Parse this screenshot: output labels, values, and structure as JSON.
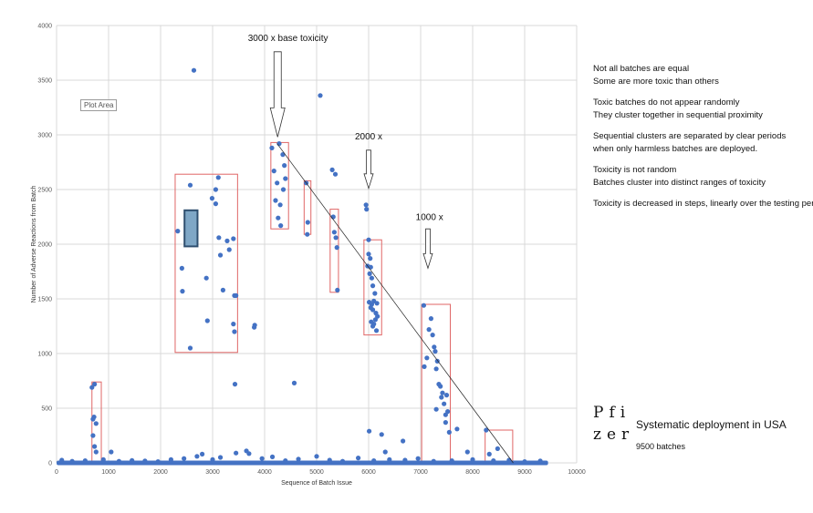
{
  "chart_data": {
    "type": "scatter",
    "xlabel": "Sequence of Batch Issue",
    "ylabel": "Number of Adverse Reactions from Batch",
    "xlim": [
      0,
      10000
    ],
    "ylim": [
      0,
      4000
    ],
    "x_ticks": [
      "0",
      "1000",
      "2000",
      "3000",
      "4000",
      "5000",
      "6000",
      "7000",
      "8000",
      "9000",
      "10000"
    ],
    "y_ticks": [
      "0",
      "500",
      "1000",
      "1500",
      "2000",
      "2500",
      "3000",
      "3500",
      "4000"
    ],
    "grid": true,
    "point_color": "#4472c4",
    "box_color": "#e06666",
    "plot_area_label": "Plot Area",
    "points": [
      [
        680,
        690
      ],
      [
        730,
        720
      ],
      [
        720,
        420
      ],
      [
        700,
        400
      ],
      [
        760,
        360
      ],
      [
        700,
        250
      ],
      [
        730,
        150
      ],
      [
        760,
        100
      ],
      [
        1050,
        100
      ],
      [
        2330,
        2120
      ],
      [
        2410,
        1780
      ],
      [
        2420,
        1570
      ],
      [
        2570,
        2540
      ],
      [
        2640,
        3590
      ],
      [
        2880,
        1690
      ],
      [
        2900,
        1300
      ],
      [
        2570,
        1050
      ],
      [
        2990,
        2420
      ],
      [
        3060,
        2500
      ],
      [
        3060,
        2370
      ],
      [
        3110,
        2610
      ],
      [
        3120,
        2060
      ],
      [
        3150,
        1900
      ],
      [
        3200,
        1580
      ],
      [
        3280,
        2030
      ],
      [
        3320,
        1950
      ],
      [
        3400,
        2050
      ],
      [
        3400,
        1270
      ],
      [
        3420,
        1530
      ],
      [
        3450,
        1530
      ],
      [
        3420,
        1200
      ],
      [
        3430,
        720
      ],
      [
        3800,
        1240
      ],
      [
        3810,
        1260
      ],
      [
        4140,
        2880
      ],
      [
        4180,
        2670
      ],
      [
        4210,
        2400
      ],
      [
        4240,
        2560
      ],
      [
        4260,
        2240
      ],
      [
        4280,
        2920
      ],
      [
        4300,
        2360
      ],
      [
        4310,
        2170
      ],
      [
        4350,
        2820
      ],
      [
        4360,
        2500
      ],
      [
        4380,
        2720
      ],
      [
        4400,
        2600
      ],
      [
        4570,
        730
      ],
      [
        5070,
        3360
      ],
      [
        4800,
        2560
      ],
      [
        4830,
        2200
      ],
      [
        4820,
        2090
      ],
      [
        5300,
        2680
      ],
      [
        5320,
        2250
      ],
      [
        5340,
        2110
      ],
      [
        5370,
        2060
      ],
      [
        5390,
        1970
      ],
      [
        5400,
        1580
      ],
      [
        5360,
        2640
      ],
      [
        5950,
        2360
      ],
      [
        5960,
        2320
      ],
      [
        5980,
        1800
      ],
      [
        6000,
        1910
      ],
      [
        6020,
        1730
      ],
      [
        6040,
        1790
      ],
      [
        6060,
        1690
      ],
      [
        6080,
        1620
      ],
      [
        6010,
        1470
      ],
      [
        6040,
        1420
      ],
      [
        6060,
        1450
      ],
      [
        6080,
        1400
      ],
      [
        6100,
        1480
      ],
      [
        6120,
        1550
      ],
      [
        6140,
        1370
      ],
      [
        6160,
        1460
      ],
      [
        6170,
        1340
      ],
      [
        6050,
        1290
      ],
      [
        6080,
        1250
      ],
      [
        6100,
        1270
      ],
      [
        6130,
        1310
      ],
      [
        6150,
        1210
      ],
      [
        6000,
        2040
      ],
      [
        6030,
        1870
      ],
      [
        6010,
        290
      ],
      [
        6250,
        260
      ],
      [
        6320,
        100
      ],
      [
        6660,
        200
      ],
      [
        7060,
        1440
      ],
      [
        7070,
        880
      ],
      [
        7120,
        960
      ],
      [
        7160,
        1220
      ],
      [
        7200,
        1320
      ],
      [
        7230,
        1170
      ],
      [
        7260,
        1060
      ],
      [
        7280,
        1020
      ],
      [
        7300,
        860
      ],
      [
        7320,
        930
      ],
      [
        7350,
        720
      ],
      [
        7380,
        700
      ],
      [
        7400,
        600
      ],
      [
        7420,
        640
      ],
      [
        7450,
        540
      ],
      [
        7480,
        370
      ],
      [
        7500,
        620
      ],
      [
        7520,
        470
      ],
      [
        7300,
        490
      ],
      [
        7550,
        280
      ],
      [
        7480,
        440
      ],
      [
        7700,
        310
      ],
      [
        7900,
        100
      ],
      [
        8260,
        300
      ],
      [
        8480,
        130
      ],
      [
        8320,
        80
      ]
    ],
    "baseline_points": [
      [
        100,
        25
      ],
      [
        300,
        15
      ],
      [
        550,
        20
      ],
      [
        900,
        30
      ],
      [
        1200,
        15
      ],
      [
        1450,
        22
      ],
      [
        1700,
        18
      ],
      [
        1950,
        12
      ],
      [
        2200,
        30
      ],
      [
        2450,
        40
      ],
      [
        2700,
        60
      ],
      [
        2800,
        80
      ],
      [
        3000,
        30
      ],
      [
        3150,
        50
      ],
      [
        3450,
        90
      ],
      [
        3650,
        110
      ],
      [
        3700,
        85
      ],
      [
        3950,
        40
      ],
      [
        4150,
        55
      ],
      [
        4400,
        20
      ],
      [
        4650,
        35
      ],
      [
        5000,
        60
      ],
      [
        5250,
        25
      ],
      [
        5500,
        15
      ],
      [
        5800,
        45
      ],
      [
        6100,
        20
      ],
      [
        6400,
        30
      ],
      [
        6700,
        25
      ],
      [
        6950,
        40
      ],
      [
        7250,
        15
      ],
      [
        7600,
        20
      ],
      [
        8000,
        30
      ],
      [
        8400,
        20
      ],
      [
        8700,
        25
      ],
      [
        9000,
        12
      ],
      [
        9300,
        18
      ]
    ],
    "baseline_range": [
      0,
      9450
    ],
    "trend_line": [
      [
        4240,
        2920
      ],
      [
        8780,
        0
      ]
    ],
    "boxes": [
      {
        "x0": 680,
        "x1": 860,
        "y0": 0,
        "y1": 740
      },
      {
        "x0": 2280,
        "x1": 3480,
        "y0": 1010,
        "y1": 2640
      },
      {
        "x0": 4120,
        "x1": 4460,
        "y0": 2140,
        "y1": 2930
      },
      {
        "x0": 4760,
        "x1": 4890,
        "y0": 2090,
        "y1": 2580
      },
      {
        "x0": 5260,
        "x1": 5420,
        "y0": 1560,
        "y1": 2320
      },
      {
        "x0": 5910,
        "x1": 6250,
        "y0": 1170,
        "y1": 2040
      },
      {
        "x0": 7020,
        "x1": 7570,
        "y0": 0,
        "y1": 1450
      },
      {
        "x0": 8240,
        "x1": 8770,
        "y0": 0,
        "y1": 300
      }
    ],
    "highlight_box": {
      "x0": 2460,
      "x1": 2710,
      "y0": 1980,
      "y1": 2310,
      "fill": "#7fa7c6",
      "stroke": "#2f4f6f"
    },
    "annotations": [
      {
        "label": "3000 x base toxicity",
        "x": 4450,
        "y": 3860
      },
      {
        "label": "2000 x",
        "x": 6000,
        "y": 2960
      },
      {
        "label": "1000 x",
        "x": 7170,
        "y": 2220
      }
    ],
    "arrows": [
      {
        "x": 4250,
        "y_top": 3760,
        "y_bottom": 2980,
        "wide": true
      },
      {
        "x": 6000,
        "y_top": 2860,
        "y_bottom": 2510,
        "wide": false
      },
      {
        "x": 7140,
        "y_top": 2140,
        "y_bottom": 1780,
        "wide": false
      }
    ]
  },
  "notes": [
    [
      "Not all batches are equal",
      "Some are more toxic than others"
    ],
    [
      "Toxic batches do not appear randomly",
      "They cluster together in sequential proximity"
    ],
    [
      "Sequential clusters are separated by clear periods",
      "when only harmless batches are deployed."
    ],
    [
      "Toxicity is not random",
      "Batches cluster into distinct ranges of toxicity"
    ],
    [
      "Toxicity is decreased in steps, linearly over the testing period"
    ]
  ],
  "brand": [
    "Pfi",
    "zer"
  ],
  "subtitle": "Systematic deployment in USA",
  "batch_count": "9500 batches"
}
